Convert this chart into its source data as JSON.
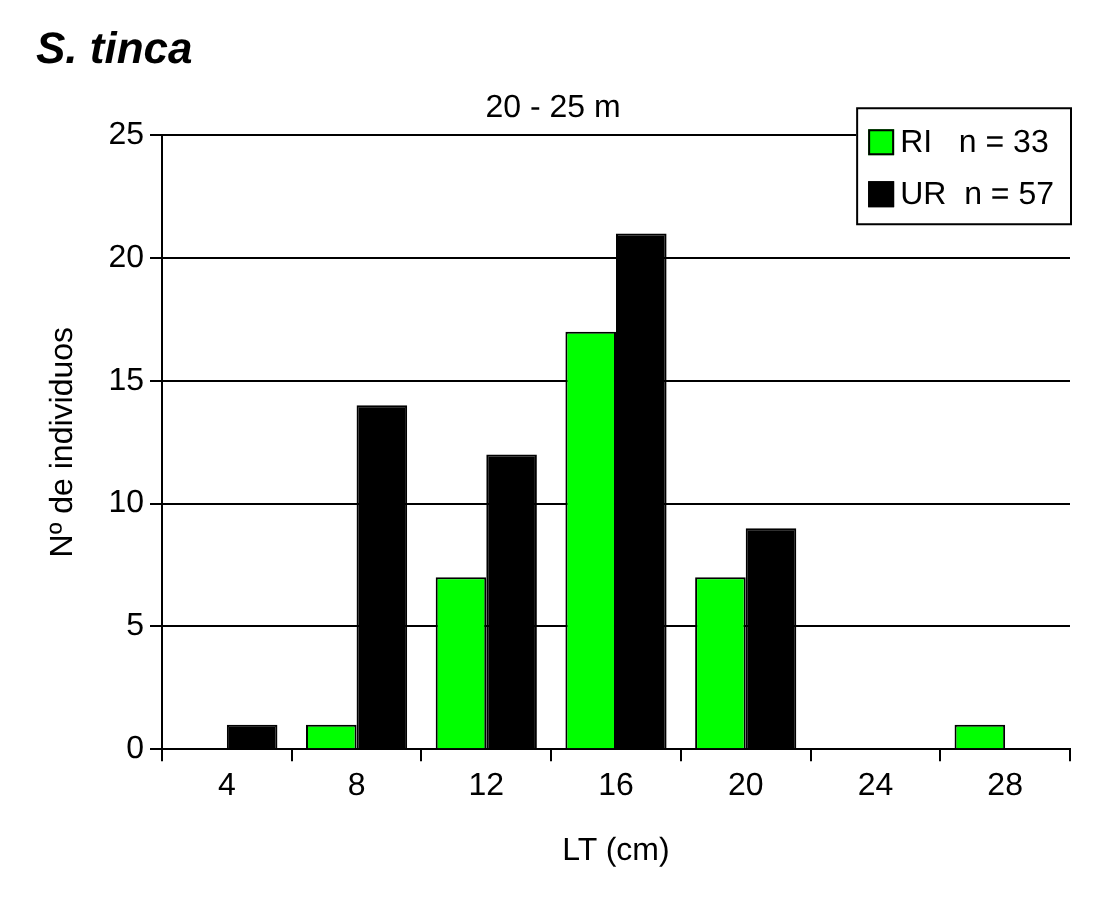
{
  "chart_data": {
    "type": "bar",
    "title": "S. tinca",
    "subtitle": "20 - 25 m",
    "xlabel": "LT (cm)",
    "ylabel": "Nº de individuos",
    "categories": [
      "4",
      "8",
      "12",
      "16",
      "20",
      "24",
      "28"
    ],
    "series": [
      {
        "name": "RI   n = 33",
        "color": "#00ff00",
        "values": [
          0,
          1,
          7,
          17,
          7,
          0,
          1
        ]
      },
      {
        "name": "UR  n = 57",
        "color": "#000000",
        "values": [
          1,
          14,
          12,
          21,
          9,
          0,
          0
        ]
      }
    ],
    "ylim": [
      0,
      25
    ],
    "yticks": [
      0,
      5,
      10,
      15,
      20,
      25
    ],
    "grid": "y",
    "legend": "top right"
  }
}
